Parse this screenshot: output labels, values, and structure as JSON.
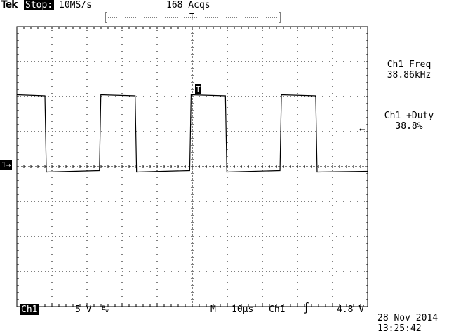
{
  "header": {
    "brand": "Tek",
    "state": "Stop:",
    "sample_rate": "10MS/s",
    "acquisitions": "168 Acqs",
    "trigger_pos_label": "T"
  },
  "screen": {
    "divisions_x": 10,
    "divisions_y": 8,
    "grid": true
  },
  "waveform": {
    "channel": "Ch1",
    "trigger_marker": "T",
    "ground_marker": "1→",
    "trigger_level_marker": "←",
    "period_div": 2.573,
    "duty": 0.388,
    "first_rise_div": -2.605,
    "high_level_div": 2.05,
    "low_level_div": -0.15
  },
  "measurements": [
    {
      "label": "Ch1 Freq",
      "value": "38.86kHz"
    },
    {
      "label": "Ch1 +Duty",
      "value": "38.8%"
    }
  ],
  "footer": {
    "channel": "Ch1",
    "volts_div": "5 V",
    "bw_mark": "B",
    "bw_sub": "W",
    "timebase_prefix": "M",
    "time_div": "10μs",
    "trig_source": "Ch1",
    "trig_slope": "∫",
    "trig_level": "4.8 V",
    "date": "28 Nov 2014",
    "time": "13:25:42"
  },
  "colors": {
    "background": "#ffffff",
    "foreground": "#000000"
  }
}
